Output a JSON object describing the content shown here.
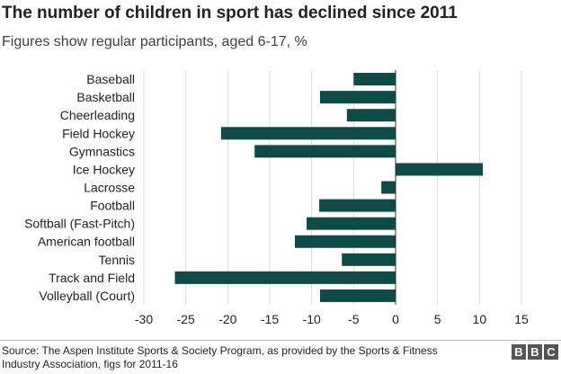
{
  "title": "The number of children in sport has declined since 2011",
  "subtitle": "Figures show regular participants, aged 6-17, %",
  "source": "Source: The Aspen Institute Sports & Society Program, as provided by the Sports & Fitness Industry Association, figs for 2011-16",
  "logo": [
    "B",
    "B",
    "C"
  ],
  "colors": {
    "bar": "#0f4a47",
    "grid": "#dddddd",
    "zero_line": "#333333"
  },
  "chart_data": {
    "type": "bar",
    "orientation": "horizontal",
    "categories": [
      "Baseball",
      "Basketball",
      "Cheerleading",
      "Field Hockey",
      "Gymnastics",
      "Ice Hockey",
      "Lacrosse",
      "Football",
      "Softball (Fast-Pitch)",
      "American football",
      "Tennis",
      "Track and Field",
      "Volleyball (Court)"
    ],
    "values": [
      -5,
      -9,
      -5.8,
      -20.8,
      -16.8,
      10.4,
      -1.7,
      -9.1,
      -10.6,
      -12,
      -6.4,
      -26.3,
      -9
    ],
    "xlim": [
      -30,
      15
    ],
    "xticks": [
      -30,
      -25,
      -20,
      -15,
      -10,
      -5,
      0,
      5,
      10,
      15
    ],
    "grid": true
  }
}
